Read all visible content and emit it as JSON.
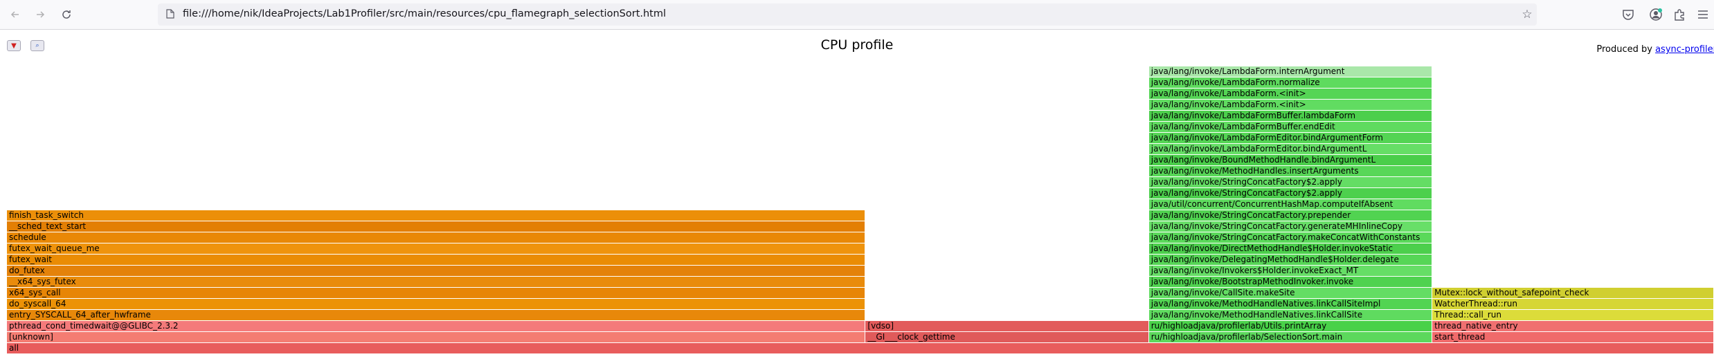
{
  "browser": {
    "url": "file:///home/nik/IdeaProjects/Lab1Profiler/src/main/resources/cpu_flamegraph_selectionSort.html",
    "icons": [
      "back-icon",
      "forward-icon",
      "reload-icon",
      "file-icon",
      "star-icon",
      "pocket-icon",
      "account-icon",
      "extensions-icon",
      "menu-icon"
    ]
  },
  "page": {
    "title": "CPU profile",
    "produced_prefix": "Produced by ",
    "produced_link": "async-profiler",
    "reverse_button": "▼",
    "search_button": "🔍"
  },
  "colors": {
    "red": "#e55e5e",
    "salmon": "#f0847a",
    "orange": "#e98a00",
    "green": "#5bd75b",
    "light_green": "#a8e6a8",
    "yellow": "#dada37"
  },
  "flamegraph": {
    "frames": [
      {
        "label": "all",
        "x0": 0.0,
        "x1": 1.0,
        "depth": 0,
        "color": "#e85c5c"
      },
      {
        "label": "[unknown]",
        "x0": 0.0,
        "x1": 0.503,
        "depth": 1,
        "color": "#f47c72"
      },
      {
        "label": "__GI___clock_gettime",
        "x0": 0.503,
        "x1": 0.669,
        "depth": 1,
        "color": "#e05a5a"
      },
      {
        "label": "ru/highloadjava/profilerlab/SelectionSort.main",
        "x0": 0.669,
        "x1": 0.835,
        "depth": 1,
        "color": "#5cd85c"
      },
      {
        "label": "start_thread",
        "x0": 0.835,
        "x1": 1.0,
        "depth": 1,
        "color": "#f06a6a"
      },
      {
        "label": "pthread_cond_timedwait@@GLIBC_2.3.2",
        "x0": 0.0,
        "x1": 0.503,
        "depth": 2,
        "color": "#f47a7a"
      },
      {
        "label": "[vdso]",
        "x0": 0.503,
        "x1": 0.669,
        "depth": 2,
        "color": "#e25b5b"
      },
      {
        "label": "ru/highloadjava/profilerlab/Utils.printArray",
        "x0": 0.669,
        "x1": 0.835,
        "depth": 2,
        "color": "#49d149"
      },
      {
        "label": "thread_native_entry",
        "x0": 0.835,
        "x1": 1.0,
        "depth": 2,
        "color": "#f07070"
      },
      {
        "label": "entry_SYSCALL_64_after_hwframe",
        "x0": 0.0,
        "x1": 0.503,
        "depth": 3,
        "color": "#e8880a"
      },
      {
        "label": "java/lang/invoke/MethodHandleNatives.linkCallSite",
        "x0": 0.669,
        "x1": 0.835,
        "depth": 3,
        "color": "#5fdb5f"
      },
      {
        "label": "Thread::call_run",
        "x0": 0.835,
        "x1": 1.0,
        "depth": 3,
        "color": "#dcdc3a"
      },
      {
        "label": "do_syscall_64",
        "x0": 0.0,
        "x1": 0.503,
        "depth": 4,
        "color": "#ec9207"
      },
      {
        "label": "java/lang/invoke/MethodHandleNatives.linkCallSiteImpl",
        "x0": 0.669,
        "x1": 0.835,
        "depth": 4,
        "color": "#52d452"
      },
      {
        "label": "WatcherThread::run",
        "x0": 0.835,
        "x1": 1.0,
        "depth": 4,
        "color": "#d6d634"
      },
      {
        "label": "x64_sys_call",
        "x0": 0.0,
        "x1": 0.503,
        "depth": 5,
        "color": "#e78506"
      },
      {
        "label": "java/lang/invoke/CallSite.makeSite",
        "x0": 0.669,
        "x1": 0.835,
        "depth": 5,
        "color": "#63dd63"
      },
      {
        "label": "Mutex::lock_without_safepoint_check",
        "x0": 0.835,
        "x1": 1.0,
        "depth": 5,
        "color": "#d0cf30"
      },
      {
        "label": "__x64_sys_futex",
        "x0": 0.0,
        "x1": 0.503,
        "depth": 6,
        "color": "#e98b0b"
      },
      {
        "label": "java/lang/invoke/BootstrapMethodInvoker.invoke",
        "x0": 0.669,
        "x1": 0.835,
        "depth": 6,
        "color": "#4fd24f"
      },
      {
        "label": "do_futex",
        "x0": 0.0,
        "x1": 0.503,
        "depth": 7,
        "color": "#e4820a"
      },
      {
        "label": "java/lang/invoke/Invokers$Holder.invokeExact_MT",
        "x0": 0.669,
        "x1": 0.835,
        "depth": 7,
        "color": "#66de66"
      },
      {
        "label": "futex_wait",
        "x0": 0.0,
        "x1": 0.503,
        "depth": 8,
        "color": "#ea8c04"
      },
      {
        "label": "java/lang/invoke/DelegatingMethodHandle$Holder.delegate",
        "x0": 0.669,
        "x1": 0.835,
        "depth": 8,
        "color": "#56d656"
      },
      {
        "label": "futex_wait_queue_me",
        "x0": 0.0,
        "x1": 0.503,
        "depth": 9,
        "color": "#ef930c"
      },
      {
        "label": "java/lang/invoke/DirectMethodHandle$Holder.invokeStatic",
        "x0": 0.669,
        "x1": 0.835,
        "depth": 9,
        "color": "#4ccf4c"
      },
      {
        "label": "schedule",
        "x0": 0.0,
        "x1": 0.503,
        "depth": 10,
        "color": "#e98806"
      },
      {
        "label": "java/lang/invoke/StringConcatFactory.makeConcatWithConstants",
        "x0": 0.669,
        "x1": 0.835,
        "depth": 10,
        "color": "#5ad95a"
      },
      {
        "label": "__sched_text_start",
        "x0": 0.0,
        "x1": 0.503,
        "depth": 11,
        "color": "#e37f04"
      },
      {
        "label": "java/lang/invoke/StringConcatFactory.generateMHInlineCopy",
        "x0": 0.669,
        "x1": 0.835,
        "depth": 11,
        "color": "#68df68"
      },
      {
        "label": "finish_task_switch",
        "x0": 0.0,
        "x1": 0.503,
        "depth": 12,
        "color": "#ec8f09"
      },
      {
        "label": "java/lang/invoke/StringConcatFactory.prepender",
        "x0": 0.669,
        "x1": 0.835,
        "depth": 12,
        "color": "#51d351"
      },
      {
        "label": "java/util/concurrent/ConcurrentHashMap.computeIfAbsent",
        "x0": 0.669,
        "x1": 0.835,
        "depth": 13,
        "color": "#60dc60"
      },
      {
        "label": "java/lang/invoke/StringConcatFactory$2.apply",
        "x0": 0.669,
        "x1": 0.835,
        "depth": 14,
        "color": "#4dd04d"
      },
      {
        "label": "java/lang/invoke/StringConcatFactory$2.apply",
        "x0": 0.669,
        "x1": 0.835,
        "depth": 15,
        "color": "#64dd64"
      },
      {
        "label": "java/lang/invoke/MethodHandles.insertArguments",
        "x0": 0.669,
        "x1": 0.835,
        "depth": 16,
        "color": "#58d758"
      },
      {
        "label": "java/lang/invoke/BoundMethodHandle.bindArgumentL",
        "x0": 0.669,
        "x1": 0.835,
        "depth": 17,
        "color": "#4ace4a"
      },
      {
        "label": "java/lang/invoke/LambdaFormEditor.bindArgumentL",
        "x0": 0.669,
        "x1": 0.835,
        "depth": 18,
        "color": "#66de66"
      },
      {
        "label": "java/lang/invoke/LambdaFormEditor.bindArgumentForm",
        "x0": 0.669,
        "x1": 0.835,
        "depth": 19,
        "color": "#53d453"
      },
      {
        "label": "java/lang/invoke/LambdaFormBuffer.endEdit",
        "x0": 0.669,
        "x1": 0.835,
        "depth": 20,
        "color": "#5fdb5f"
      },
      {
        "label": "java/lang/invoke/LambdaFormBuffer.lambdaForm",
        "x0": 0.669,
        "x1": 0.835,
        "depth": 21,
        "color": "#4ccf4c"
      },
      {
        "label": "java/lang/invoke/LambdaForm.<init>",
        "x0": 0.669,
        "x1": 0.835,
        "depth": 22,
        "color": "#61dc61"
      },
      {
        "label": "java/lang/invoke/LambdaForm.<init>",
        "x0": 0.669,
        "x1": 0.835,
        "depth": 23,
        "color": "#55d555"
      },
      {
        "label": "java/lang/invoke/LambdaForm.normalize",
        "x0": 0.669,
        "x1": 0.835,
        "depth": 24,
        "color": "#5edb5e"
      },
      {
        "label": "java/lang/invoke/LambdaForm.internArgument",
        "x0": 0.669,
        "x1": 0.835,
        "depth": 25,
        "color": "#a9e7a9"
      }
    ]
  }
}
